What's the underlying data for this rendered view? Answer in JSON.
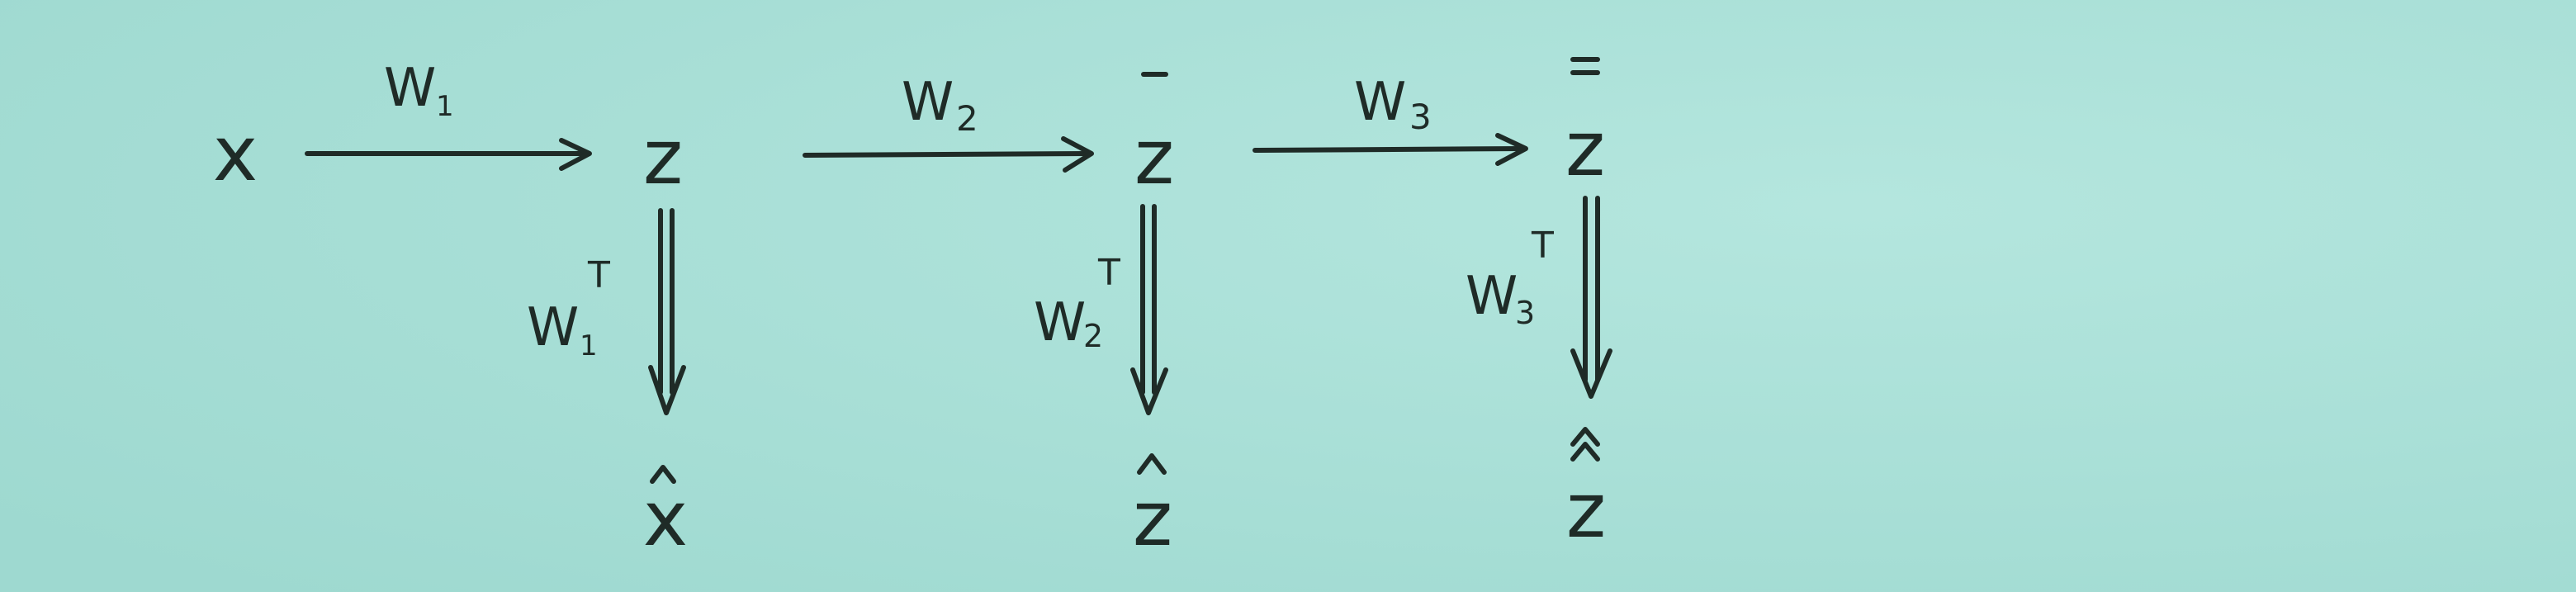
{
  "diagram": {
    "colors": {
      "board_bg": "#9ed9d0",
      "board_bg_light": "#b4e6de",
      "ink": "#1f2b27"
    },
    "nodes": {
      "x": "x",
      "z": "z",
      "z_bar": "z",
      "z_dbar": "z",
      "x_hat": "x",
      "z_hat": "z",
      "z_hat2": "z"
    },
    "edge_labels": {
      "w1": "W",
      "w1_sub": "1",
      "w2": "W",
      "w2_sub": "2",
      "w3": "W",
      "w3_sub": "3",
      "w1t": "W",
      "w1t_sub": "1",
      "w1t_sup": "T",
      "w2t": "W",
      "w2t_sub": "2",
      "w2t_sup": "T",
      "w3t": "W",
      "w3t_sub": "3",
      "w3t_sup": "T"
    }
  }
}
